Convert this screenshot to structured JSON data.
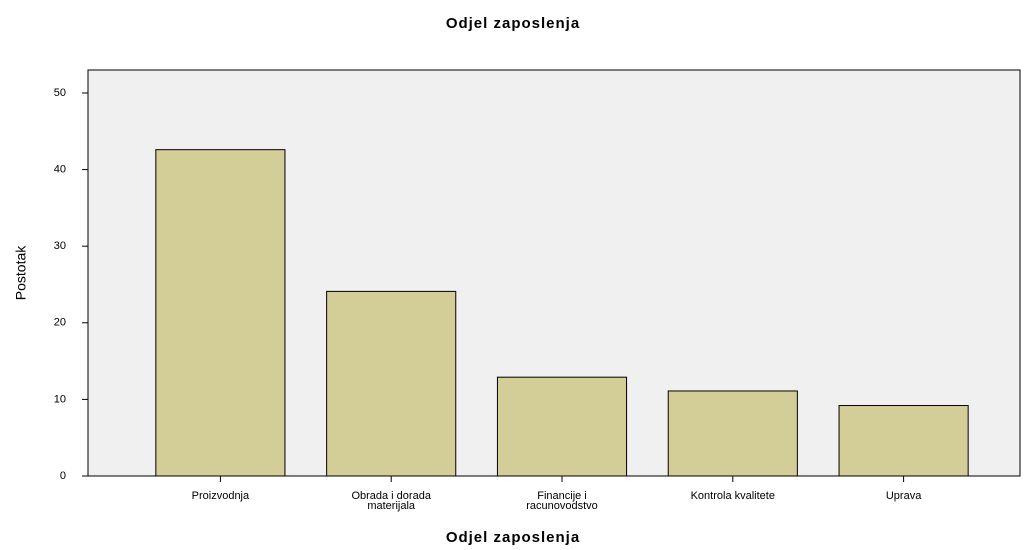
{
  "chart_data": {
    "type": "bar",
    "title": "Odjel zaposlenja",
    "x_label": "Odjel zaposlenja",
    "y_label": "Postotak",
    "categories": [
      "Proizvodnja",
      "Obrada i dorada materijala",
      "Financije i racunovodstvo",
      "Kontrola kvalitete",
      "Uprava"
    ],
    "values": [
      42.6,
      24.1,
      12.9,
      11.1,
      9.2
    ],
    "color": "#d3cd98",
    "ylim": [
      0,
      53
    ],
    "yticks": [
      0,
      10,
      20,
      30,
      40,
      50
    ],
    "grid": false
  }
}
